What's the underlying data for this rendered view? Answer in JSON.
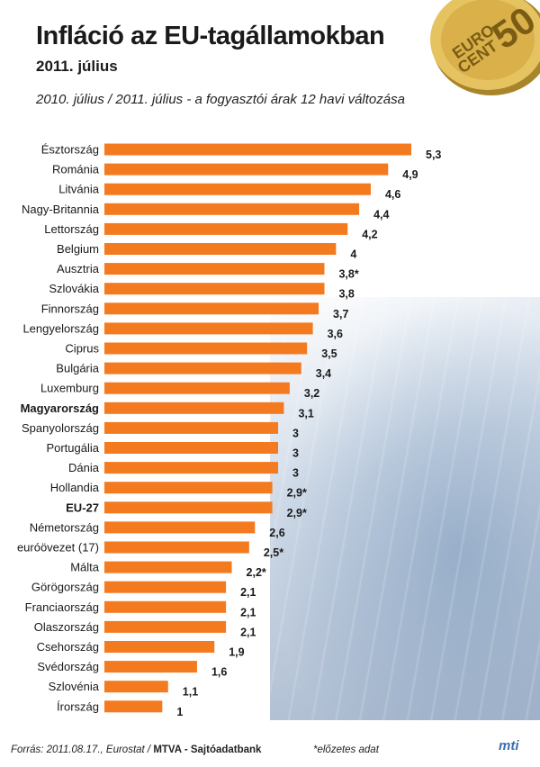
{
  "header": {
    "title": "Infláció az EU-tagállamokban",
    "subtitle": "2011. július",
    "description": "2010. július / 2011. július - a fogyasztói árak 12 havi változása"
  },
  "coin": {
    "text_top": "EURO",
    "text_bottom": "CENT",
    "number": "50"
  },
  "chart_data": {
    "type": "bar",
    "orientation": "horizontal",
    "title": "Infláció az EU-tagállamokban",
    "subtitle": "2011. július",
    "xlabel": "",
    "ylabel": "",
    "xlim": [
      0,
      5.3
    ],
    "grid": false,
    "bar_color": "#f47a20",
    "categories": [
      "Észtország",
      "Románia",
      "Litvánia",
      "Nagy-Britannia",
      "Lettország",
      "Belgium",
      "Ausztria",
      "Szlovákia",
      "Finnország",
      "Lengyelország",
      "Ciprus",
      "Bulgária",
      "Luxemburg",
      "Magyarország",
      "Spanyolország",
      "Portugália",
      "Dánia",
      "Hollandia",
      "EU-27",
      "Németország",
      "euróövezet (17)",
      "Málta",
      "Görögország",
      "Franciaország",
      "Olaszország",
      "Csehország",
      "Svédország",
      "Szlovénia",
      "Írország"
    ],
    "values": [
      5.3,
      4.9,
      4.6,
      4.4,
      4.2,
      4.0,
      3.8,
      3.8,
      3.7,
      3.6,
      3.5,
      3.4,
      3.2,
      3.1,
      3.0,
      3.0,
      3.0,
      2.9,
      2.9,
      2.6,
      2.5,
      2.2,
      2.1,
      2.1,
      2.1,
      1.9,
      1.6,
      1.1,
      1.0
    ],
    "value_labels": [
      "5,3",
      "4,9",
      "4,6",
      "4,4",
      "4,2",
      "4",
      "3,8*",
      "3,8",
      "3,7",
      "3,6",
      "3,5",
      "3,4",
      "3,2",
      "3,1",
      "3",
      "3",
      "3",
      "2,9*",
      "2,9*",
      "2,6",
      "2,5*",
      "2,2*",
      "2,1",
      "2,1",
      "2,1",
      "1,9",
      "1,6",
      "1,1",
      "1"
    ],
    "highlighted": [
      "Magyarország",
      "EU-27"
    ]
  },
  "footer": {
    "source_prefix": "Forrás: 2011.08.17., Eurostat / ",
    "source_bold": "MTVA - Sajtóadatbank",
    "note": "*előzetes adat",
    "logo": "mti"
  }
}
